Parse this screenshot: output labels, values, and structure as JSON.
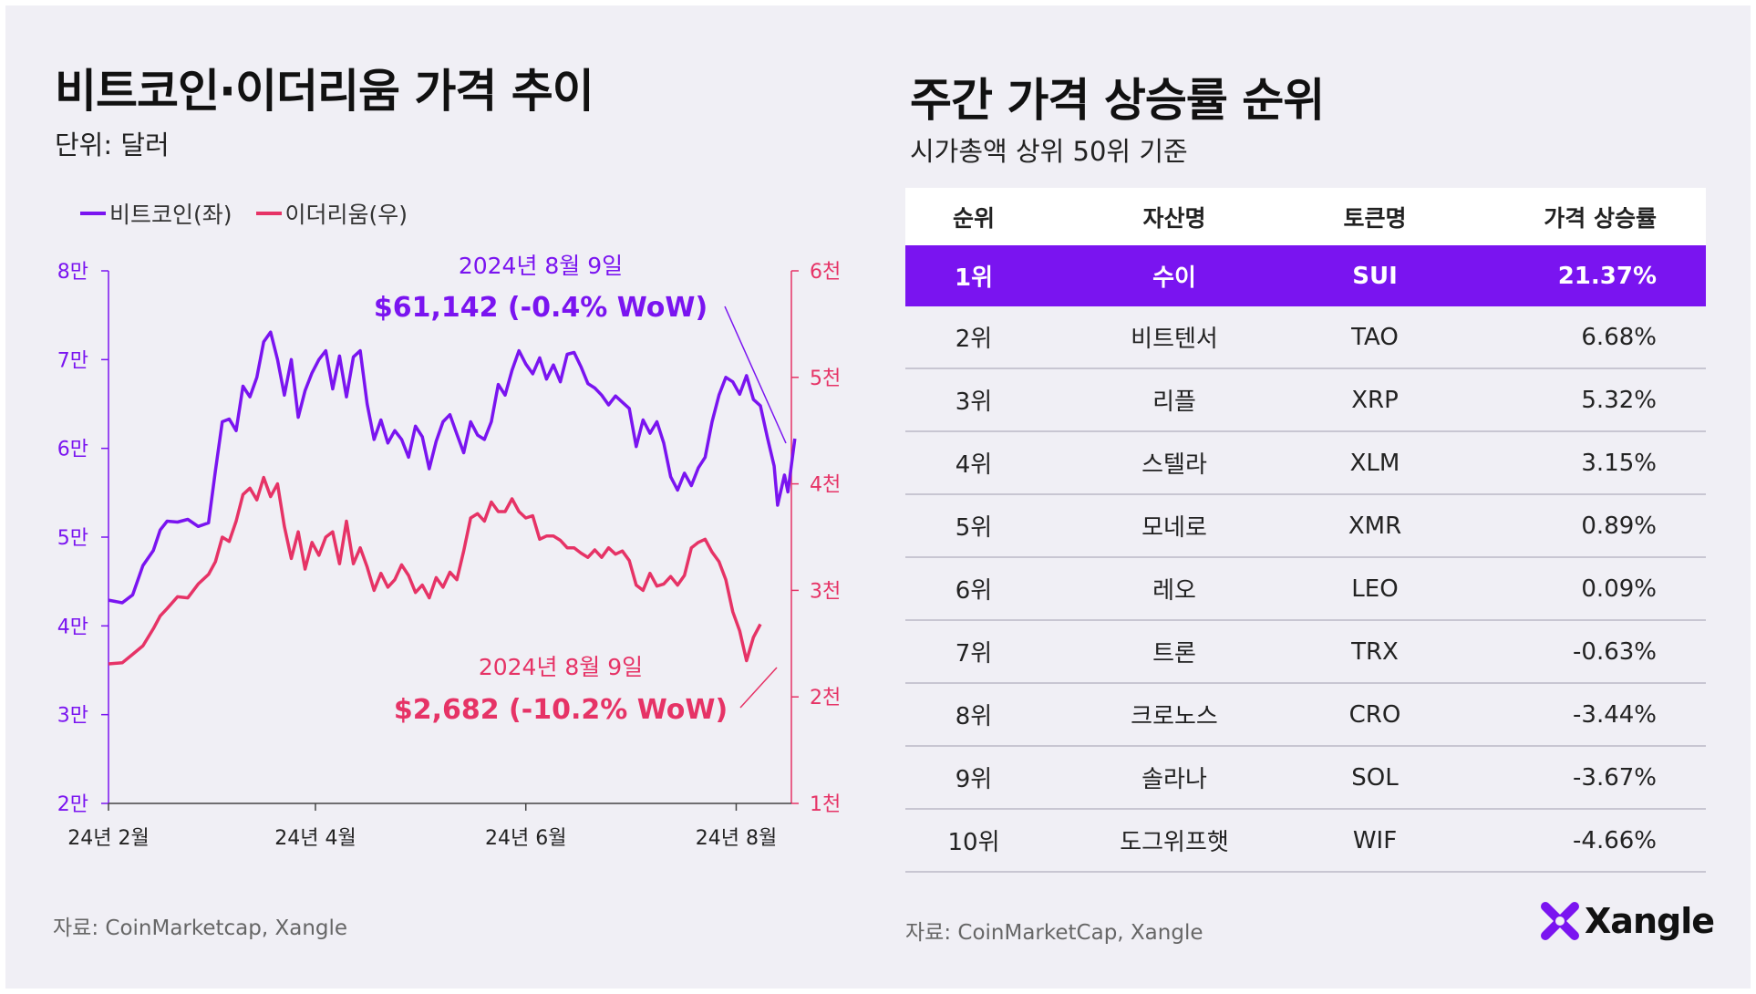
{
  "left_panel": {
    "title": "비트코인·이더리움 가격 추이",
    "subtitle": "단위: 달러",
    "source": "자료: CoinMarketcap, Xangle"
  },
  "right_panel": {
    "title": "주간 가격 상승률 순위",
    "subtitle": "시가총액 상위 50위 기준",
    "source": "자료: CoinMarketCap, Xangle",
    "logo_text": "Xangle"
  },
  "colors": {
    "btc": "#7a14f0",
    "eth": "#e63366",
    "highlight": "#7a14f0"
  },
  "chart_data": {
    "type": "line",
    "title": "비트코인·이더리움 가격 추이",
    "unit": "단위: 달러",
    "legend": [
      {
        "name": "비트코인(좌)",
        "color": "#7a14f0"
      },
      {
        "name": "이더리움(우)",
        "color": "#e63366"
      }
    ],
    "x_ticks": [
      {
        "label": "24년 2월",
        "day": 0
      },
      {
        "label": "24년 4월",
        "day": 60
      },
      {
        "label": "24년 6월",
        "day": 121
      },
      {
        "label": "24년 8월",
        "day": 182
      }
    ],
    "y_left": {
      "min": 20000,
      "max": 80000,
      "ticks": [
        {
          "v": 20000,
          "label": "2만"
        },
        {
          "v": 30000,
          "label": "3만"
        },
        {
          "v": 40000,
          "label": "4만"
        },
        {
          "v": 50000,
          "label": "5만"
        },
        {
          "v": 60000,
          "label": "6만"
        },
        {
          "v": 70000,
          "label": "7만"
        },
        {
          "v": 80000,
          "label": "8만"
        }
      ]
    },
    "y_right": {
      "min": 1000,
      "max": 6000,
      "ticks": [
        {
          "v": 1000,
          "label": "1천"
        },
        {
          "v": 2000,
          "label": "2천"
        },
        {
          "v": 3000,
          "label": "3천"
        },
        {
          "v": 4000,
          "label": "4천"
        },
        {
          "v": 5000,
          "label": "5천"
        },
        {
          "v": 6000,
          "label": "6천"
        }
      ]
    },
    "annotations": {
      "btc_date": "2024년 8월 9일",
      "btc_value": "$61,142 (-0.4% WoW)",
      "eth_date": "2024년 8월 9일",
      "eth_value": "$2,682 (-10.2% WoW)"
    },
    "series": [
      {
        "name": "비트코인(좌)",
        "axis": "left",
        "points": [
          [
            0,
            42900
          ],
          [
            4,
            42600
          ],
          [
            7,
            43500
          ],
          [
            10,
            46800
          ],
          [
            13,
            48500
          ],
          [
            15,
            50800
          ],
          [
            17,
            51800
          ],
          [
            20,
            51700
          ],
          [
            23,
            52000
          ],
          [
            26,
            51200
          ],
          [
            29,
            51600
          ],
          [
            31,
            57500
          ],
          [
            33,
            63000
          ],
          [
            35,
            63300
          ],
          [
            37,
            62000
          ],
          [
            39,
            67000
          ],
          [
            41,
            65800
          ],
          [
            43,
            68000
          ],
          [
            45,
            72000
          ],
          [
            47,
            73100
          ],
          [
            49,
            70000
          ],
          [
            51,
            66000
          ],
          [
            53,
            70000
          ],
          [
            55,
            63500
          ],
          [
            57,
            66500
          ],
          [
            59,
            68500
          ],
          [
            61,
            70000
          ],
          [
            63,
            71000
          ],
          [
            65,
            66700
          ],
          [
            67,
            70400
          ],
          [
            69,
            65800
          ],
          [
            71,
            70300
          ],
          [
            73,
            71000
          ],
          [
            75,
            65000
          ],
          [
            77,
            61000
          ],
          [
            79,
            63200
          ],
          [
            81,
            60600
          ],
          [
            83,
            62000
          ],
          [
            85,
            61000
          ],
          [
            87,
            59000
          ],
          [
            89,
            62500
          ],
          [
            91,
            61300
          ],
          [
            93,
            57700
          ],
          [
            95,
            60800
          ],
          [
            97,
            63000
          ],
          [
            99,
            63800
          ],
          [
            101,
            61600
          ],
          [
            103,
            59500
          ],
          [
            105,
            63000
          ],
          [
            107,
            61500
          ],
          [
            109,
            61000
          ],
          [
            111,
            63000
          ],
          [
            113,
            67200
          ],
          [
            115,
            66000
          ],
          [
            117,
            68800
          ],
          [
            119,
            71000
          ],
          [
            121,
            69500
          ],
          [
            123,
            68400
          ],
          [
            125,
            70200
          ],
          [
            127,
            67800
          ],
          [
            129,
            69400
          ],
          [
            131,
            67500
          ],
          [
            133,
            70600
          ],
          [
            135,
            70800
          ],
          [
            137,
            69200
          ],
          [
            139,
            67300
          ],
          [
            141,
            66800
          ],
          [
            143,
            66000
          ],
          [
            145,
            64900
          ],
          [
            147,
            65900
          ],
          [
            149,
            65200
          ],
          [
            151,
            64500
          ],
          [
            153,
            60200
          ],
          [
            155,
            63200
          ],
          [
            157,
            61700
          ],
          [
            159,
            63000
          ],
          [
            161,
            60600
          ],
          [
            163,
            56800
          ],
          [
            165,
            55300
          ],
          [
            167,
            57200
          ],
          [
            169,
            55800
          ],
          [
            171,
            57800
          ],
          [
            173,
            59000
          ],
          [
            175,
            63000
          ],
          [
            177,
            66000
          ],
          [
            179,
            68000
          ],
          [
            181,
            67500
          ],
          [
            183,
            66100
          ],
          [
            185,
            68200
          ],
          [
            187,
            65500
          ],
          [
            189,
            64800
          ],
          [
            191,
            61300
          ],
          [
            193,
            58000
          ],
          [
            194,
            53600
          ],
          [
            196,
            57000
          ],
          [
            197,
            55100
          ],
          [
            199,
            61100
          ]
        ]
      },
      {
        "name": "이더리움(우)",
        "axis": "right",
        "points": [
          [
            0,
            2310
          ],
          [
            4,
            2320
          ],
          [
            7,
            2400
          ],
          [
            10,
            2480
          ],
          [
            13,
            2640
          ],
          [
            15,
            2760
          ],
          [
            17,
            2830
          ],
          [
            20,
            2940
          ],
          [
            23,
            2930
          ],
          [
            26,
            3060
          ],
          [
            29,
            3150
          ],
          [
            31,
            3270
          ],
          [
            33,
            3500
          ],
          [
            35,
            3460
          ],
          [
            37,
            3650
          ],
          [
            39,
            3900
          ],
          [
            41,
            3960
          ],
          [
            43,
            3850
          ],
          [
            45,
            4060
          ],
          [
            47,
            3880
          ],
          [
            49,
            4000
          ],
          [
            51,
            3600
          ],
          [
            53,
            3300
          ],
          [
            55,
            3550
          ],
          [
            57,
            3200
          ],
          [
            59,
            3450
          ],
          [
            61,
            3330
          ],
          [
            63,
            3500
          ],
          [
            65,
            3550
          ],
          [
            67,
            3250
          ],
          [
            69,
            3650
          ],
          [
            71,
            3250
          ],
          [
            73,
            3400
          ],
          [
            75,
            3220
          ],
          [
            77,
            3000
          ],
          [
            79,
            3160
          ],
          [
            81,
            3030
          ],
          [
            83,
            3100
          ],
          [
            85,
            3240
          ],
          [
            87,
            3140
          ],
          [
            89,
            2980
          ],
          [
            91,
            3050
          ],
          [
            93,
            2930
          ],
          [
            95,
            3120
          ],
          [
            97,
            3030
          ],
          [
            99,
            3170
          ],
          [
            101,
            3100
          ],
          [
            103,
            3370
          ],
          [
            105,
            3680
          ],
          [
            107,
            3720
          ],
          [
            109,
            3650
          ],
          [
            111,
            3830
          ],
          [
            113,
            3740
          ],
          [
            115,
            3740
          ],
          [
            117,
            3860
          ],
          [
            119,
            3740
          ],
          [
            121,
            3680
          ],
          [
            123,
            3700
          ],
          [
            125,
            3480
          ],
          [
            127,
            3510
          ],
          [
            129,
            3510
          ],
          [
            131,
            3470
          ],
          [
            133,
            3400
          ],
          [
            135,
            3400
          ],
          [
            137,
            3350
          ],
          [
            139,
            3310
          ],
          [
            141,
            3380
          ],
          [
            143,
            3310
          ],
          [
            145,
            3400
          ],
          [
            147,
            3340
          ],
          [
            149,
            3370
          ],
          [
            151,
            3280
          ],
          [
            153,
            3050
          ],
          [
            155,
            3000
          ],
          [
            157,
            3160
          ],
          [
            159,
            3040
          ],
          [
            161,
            3060
          ],
          [
            163,
            3130
          ],
          [
            165,
            3050
          ],
          [
            167,
            3140
          ],
          [
            169,
            3400
          ],
          [
            171,
            3450
          ],
          [
            173,
            3480
          ],
          [
            175,
            3360
          ],
          [
            177,
            3270
          ],
          [
            179,
            3100
          ],
          [
            181,
            2800
          ],
          [
            183,
            2620
          ],
          [
            185,
            2340
          ],
          [
            187,
            2560
          ],
          [
            189,
            2682
          ]
        ]
      }
    ]
  },
  "table": {
    "headers": [
      "순위",
      "자산명",
      "토큰명",
      "가격 상승률"
    ],
    "rows": [
      {
        "rank": "1위",
        "name": "수이",
        "token": "SUI",
        "change": "21.37%"
      },
      {
        "rank": "2위",
        "name": "비트텐서",
        "token": "TAO",
        "change": "6.68%"
      },
      {
        "rank": "3위",
        "name": "리플",
        "token": "XRP",
        "change": "5.32%"
      },
      {
        "rank": "4위",
        "name": "스텔라",
        "token": "XLM",
        "change": "3.15%"
      },
      {
        "rank": "5위",
        "name": "모네로",
        "token": "XMR",
        "change": "0.89%"
      },
      {
        "rank": "6위",
        "name": "레오",
        "token": "LEO",
        "change": "0.09%"
      },
      {
        "rank": "7위",
        "name": "트론",
        "token": "TRX",
        "change": "-0.63%"
      },
      {
        "rank": "8위",
        "name": "크로노스",
        "token": "CRO",
        "change": "-3.44%"
      },
      {
        "rank": "9위",
        "name": "솔라나",
        "token": "SOL",
        "change": "-3.67%"
      },
      {
        "rank": "10위",
        "name": "도그위프햇",
        "token": "WIF",
        "change": "-4.66%"
      }
    ]
  }
}
